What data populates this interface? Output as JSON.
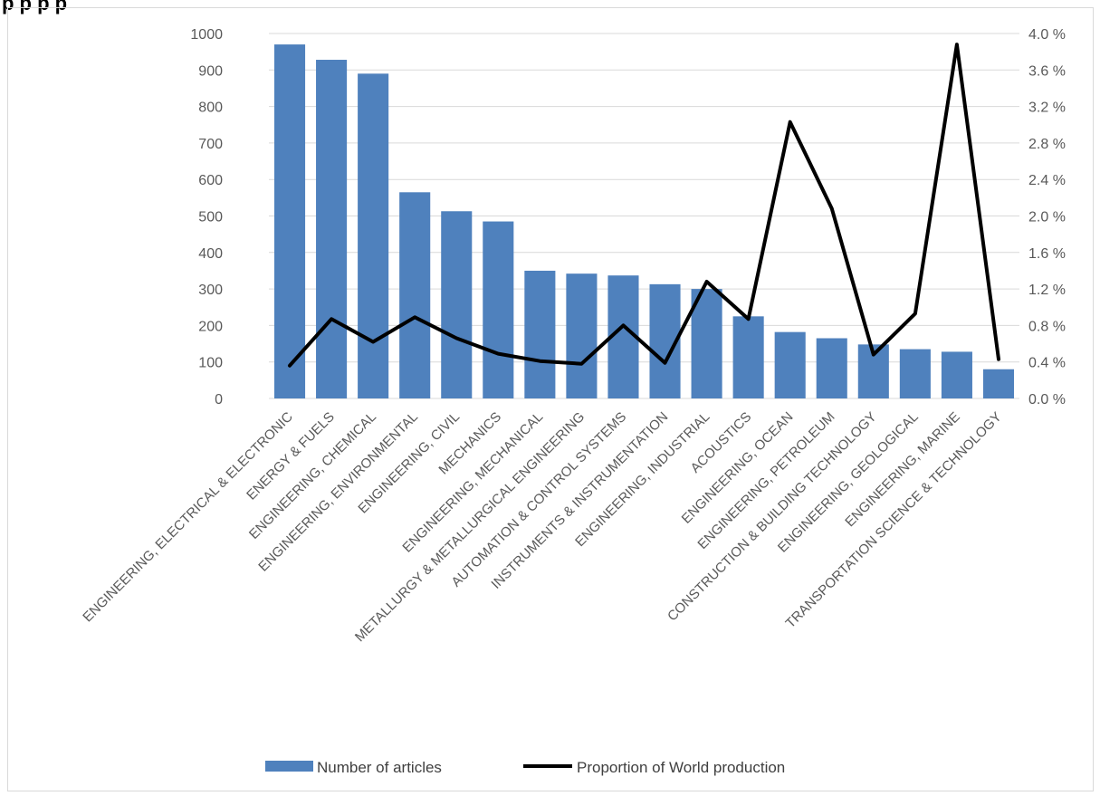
{
  "cut_title": "p                                    p      p                              p",
  "chart_data": {
    "type": "bar",
    "title": "",
    "xlabel": "",
    "ylabel": "",
    "ylim": [
      0,
      1000
    ],
    "y_ticks": [
      "0",
      "100",
      "200",
      "300",
      "400",
      "500",
      "600",
      "700",
      "800",
      "900",
      "1000"
    ],
    "y2lim": [
      0,
      4.0
    ],
    "y2_ticks": [
      "0.0 %",
      "0.4 %",
      "0.8 %",
      "1.2 %",
      "1.6 %",
      "2.0 %",
      "2.4 %",
      "2.8 %",
      "3.2 %",
      "3.6 %",
      "4.0 %"
    ],
    "grid": true,
    "legend_position": "bottom",
    "categories": [
      "ENGINEERING, ELECTRICAL & ELECTRONIC",
      "ENERGY & FUELS",
      "ENGINEERING, CHEMICAL",
      "ENGINEERING, ENVIRONMENTAL",
      "ENGINEERING, CIVIL",
      "MECHANICS",
      "ENGINEERING, MECHANICAL",
      "METALLURGY & METALLURGICAL ENGINEERING",
      "AUTOMATION & CONTROL SYSTEMS",
      "INSTRUMENTS & INSTRUMENTATION",
      "ENGINEERING, INDUSTRIAL",
      "ACOUSTICS",
      "ENGINEERING, OCEAN",
      "ENGINEERING, PETROLEUM",
      "CONSTRUCTION & BUILDING TECHNOLOGY",
      "ENGINEERING, GEOLOGICAL",
      "ENGINEERING, MARINE",
      "TRANSPORTATION SCIENCE & TECHNOLOGY"
    ],
    "series": [
      {
        "name": "Number of articles",
        "type": "bar",
        "axis": "left",
        "color": "#4f81bd",
        "values": [
          970,
          928,
          890,
          565,
          513,
          485,
          350,
          342,
          337,
          313,
          300,
          225,
          182,
          165,
          148,
          135,
          128,
          80
        ]
      },
      {
        "name": "Proportion of World production",
        "type": "line",
        "axis": "right",
        "color": "#000000",
        "values": [
          0.36,
          0.87,
          0.62,
          0.89,
          0.66,
          0.49,
          0.41,
          0.38,
          0.8,
          0.39,
          1.28,
          0.87,
          3.03,
          2.08,
          0.48,
          0.93,
          3.88,
          0.43
        ]
      }
    ]
  }
}
